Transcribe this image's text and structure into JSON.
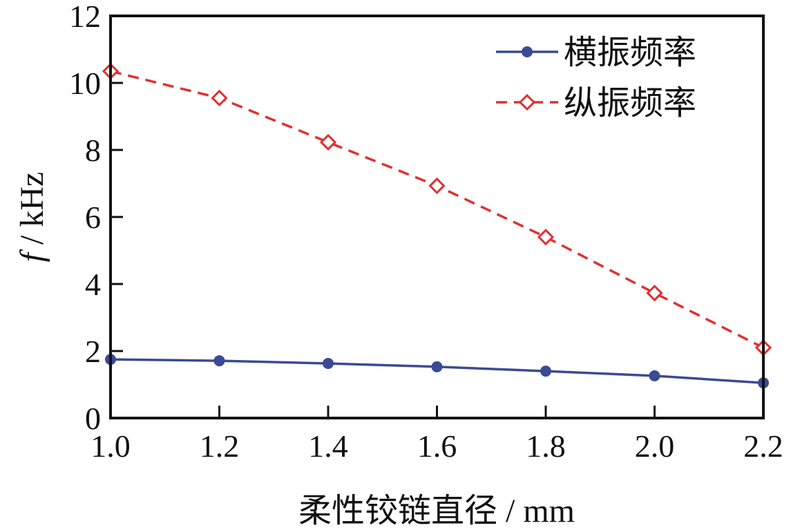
{
  "chart_data": {
    "type": "line",
    "title": "",
    "xlabel": "柔性铰链直径 / mm",
    "ylabel_italic": "f",
    "ylabel_unit": " / kHz",
    "x": [
      1.0,
      1.2,
      1.4,
      1.6,
      1.8,
      2.0,
      2.2
    ],
    "xlim": [
      1.0,
      2.2
    ],
    "ylim": [
      0,
      12
    ],
    "xticks": [
      "1.0",
      "1.2",
      "1.4",
      "1.6",
      "1.8",
      "2.0",
      "2.2"
    ],
    "yticks": [
      "0",
      "2",
      "4",
      "6",
      "8",
      "10",
      "12"
    ],
    "grid": false,
    "legend_position": "top-right",
    "series": [
      {
        "name": "横振频率",
        "color": "#3a4a94",
        "style": "solid",
        "marker": "filled-circle",
        "values": [
          1.75,
          1.71,
          1.63,
          1.53,
          1.4,
          1.26,
          1.05
        ]
      },
      {
        "name": "纵振频率",
        "color": "#e03030",
        "style": "dashed",
        "marker": "open-diamond",
        "values": [
          10.35,
          9.55,
          8.23,
          6.93,
          5.4,
          3.73,
          2.1
        ]
      }
    ]
  }
}
